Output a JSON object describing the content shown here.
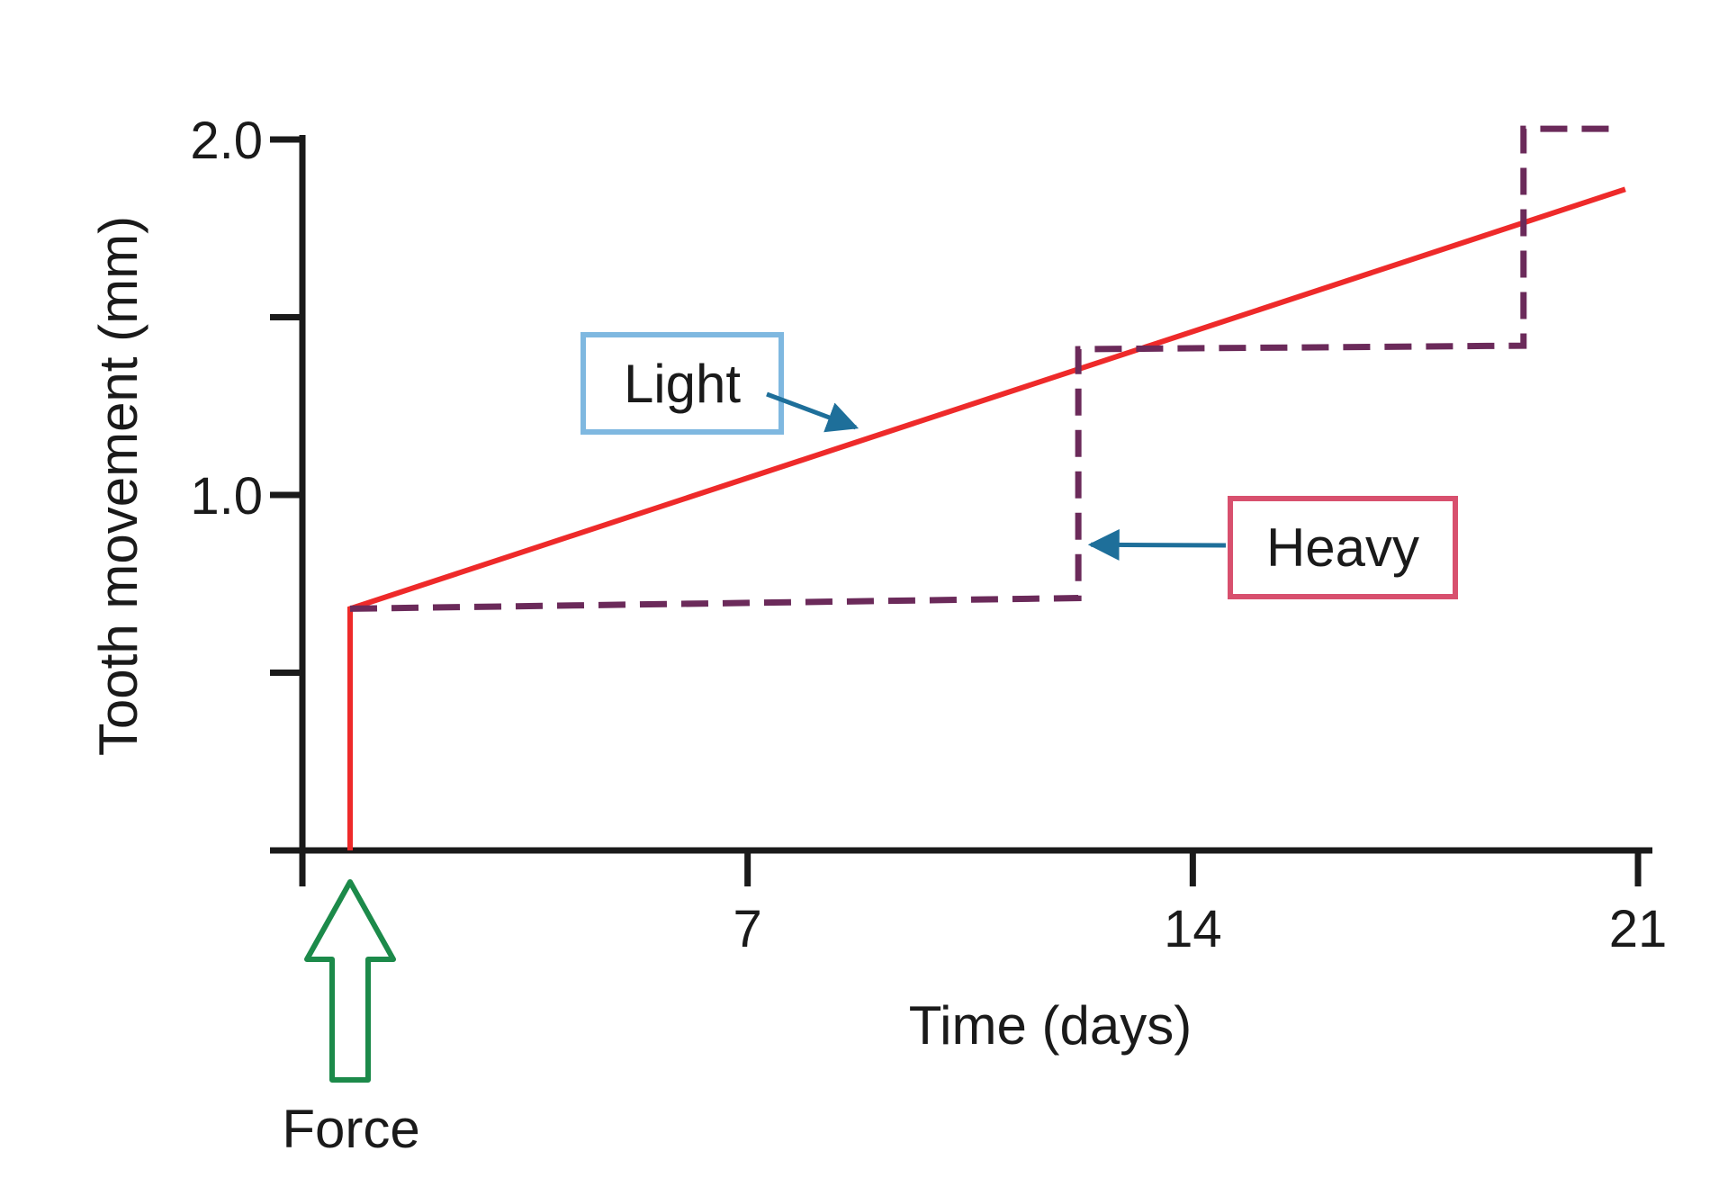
{
  "chart_data": {
    "type": "line",
    "title": "",
    "xlabel": "Time (days)",
    "ylabel": "Tooth movement (mm)",
    "xlim": [
      0,
      21
    ],
    "ylim": [
      0,
      2.0
    ],
    "x_ticks": [
      0,
      7,
      14,
      21
    ],
    "x_tick_labels": [
      "",
      "7",
      "14",
      "21"
    ],
    "y_ticks": [
      0,
      0.5,
      1.0,
      1.5,
      2.0
    ],
    "y_tick_labels": [
      "",
      "",
      "1.0",
      "",
      "2.0"
    ],
    "grid": false,
    "series": [
      {
        "name": "Light",
        "style": "solid",
        "color": "#ee2a2a",
        "x": [
          0.75,
          0.75,
          20.8
        ],
        "y": [
          0,
          0.68,
          1.86
        ]
      },
      {
        "name": "Heavy",
        "style": "dashed",
        "color": "#6b2a5a",
        "x": [
          0.75,
          12.2,
          12.2,
          19.2,
          19.2,
          20.6
        ],
        "y": [
          0.68,
          0.71,
          1.41,
          1.42,
          2.03,
          2.03
        ]
      }
    ],
    "annotations": {
      "light_label": "Light",
      "heavy_label": "Heavy",
      "force_label": "Force",
      "force_x": 0.75,
      "light_pointer": {
        "x": 8.7,
        "y": 1.19
      },
      "heavy_pointer": {
        "x": 12.4,
        "y": 0.86
      }
    },
    "colors": {
      "axis": "#1a1a1a",
      "light_line": "#ee2a2a",
      "heavy_line": "#6b2a5a",
      "light_box": "#7fb8e0",
      "heavy_box": "#d8506e",
      "pointer": "#1e6f9a",
      "force_arrow": "#1c8a4a"
    }
  }
}
